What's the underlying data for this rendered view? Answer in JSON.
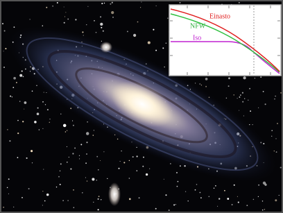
{
  "inset": {
    "labels": [
      "Einasto",
      "NFW",
      "Iso"
    ]
  }
}
